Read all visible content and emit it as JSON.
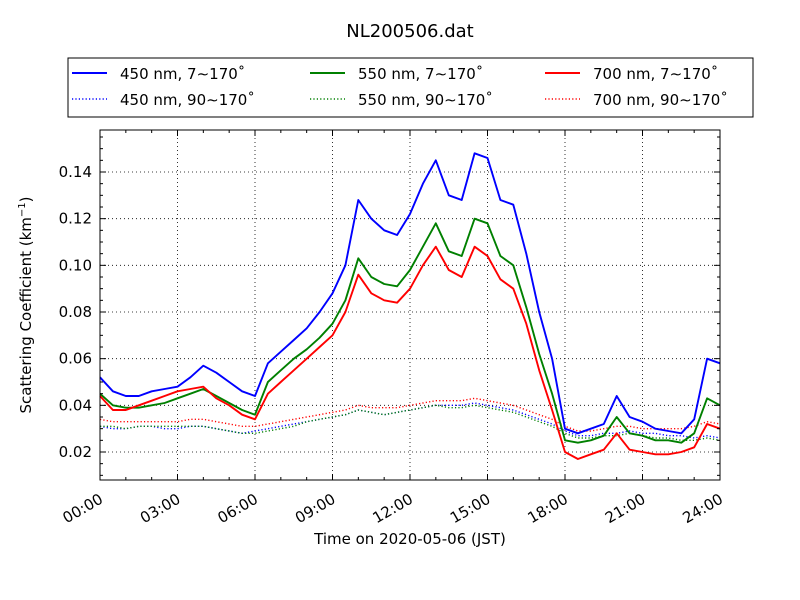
{
  "chart_data": {
    "type": "line",
    "title": "NL200506.dat",
    "xlabel": "Time on 2020-05-06 (JST)",
    "ylabel_main": "Scattering Coefficient (km",
    "ylabel_sup": "−1",
    "ylabel_end": ")",
    "xlim": [
      0,
      24
    ],
    "ylim": [
      0.008,
      0.158
    ],
    "x_ticks": [
      0,
      3,
      6,
      9,
      12,
      15,
      18,
      21,
      24
    ],
    "x_tick_labels": [
      "00:00",
      "03:00",
      "06:00",
      "09:00",
      "12:00",
      "15:00",
      "18:00",
      "21:00",
      "24:00"
    ],
    "y_ticks": [
      0.02,
      0.04,
      0.06,
      0.08,
      0.1,
      0.12,
      0.14
    ],
    "y_tick_labels": [
      "0.02",
      "0.04",
      "0.06",
      "0.08",
      "0.10",
      "0.12",
      "0.14"
    ],
    "grid": true,
    "legend_position": "top-center",
    "x": [
      0,
      0.5,
      1,
      1.5,
      2,
      2.5,
      3,
      3.5,
      4,
      4.5,
      5,
      5.5,
      6,
      6.5,
      7,
      7.5,
      8,
      8.5,
      9,
      9.5,
      10,
      10.5,
      11,
      11.5,
      12,
      12.5,
      13,
      13.5,
      14,
      14.5,
      15,
      15.5,
      16,
      16.5,
      17,
      17.5,
      18,
      18.5,
      19,
      19.5,
      20,
      20.5,
      21,
      21.5,
      22,
      22.5,
      23,
      23.5,
      24
    ],
    "series": [
      {
        "name": "450 nm, 7∼170˚",
        "color": "#0000ff",
        "style": "solid",
        "values": [
          0.052,
          0.046,
          0.044,
          0.044,
          0.046,
          0.047,
          0.048,
          0.052,
          0.057,
          0.054,
          0.05,
          0.046,
          0.044,
          0.058,
          0.063,
          0.068,
          0.073,
          0.08,
          0.088,
          0.1,
          0.128,
          0.12,
          0.115,
          0.113,
          0.122,
          0.135,
          0.145,
          0.13,
          0.128,
          0.148,
          0.146,
          0.128,
          0.126,
          0.105,
          0.08,
          0.06,
          0.03,
          0.028,
          0.03,
          0.032,
          0.044,
          0.035,
          0.033,
          0.03,
          0.029,
          0.028,
          0.034,
          0.06,
          0.058
        ]
      },
      {
        "name": "450 nm, 90∼170˚",
        "color": "#0000ff",
        "style": "dotted",
        "values": [
          0.031,
          0.03,
          0.03,
          0.031,
          0.031,
          0.03,
          0.03,
          0.031,
          0.031,
          0.03,
          0.029,
          0.028,
          0.029,
          0.03,
          0.031,
          0.032,
          0.033,
          0.034,
          0.035,
          0.036,
          0.038,
          0.037,
          0.036,
          0.037,
          0.038,
          0.039,
          0.04,
          0.04,
          0.04,
          0.041,
          0.04,
          0.039,
          0.038,
          0.036,
          0.034,
          0.032,
          0.029,
          0.027,
          0.027,
          0.028,
          0.028,
          0.029,
          0.028,
          0.028,
          0.027,
          0.027,
          0.026,
          0.027,
          0.026
        ]
      },
      {
        "name": "550 nm, 7∼170˚",
        "color": "#008000",
        "style": "solid",
        "values": [
          0.045,
          0.04,
          0.039,
          0.039,
          0.04,
          0.041,
          0.043,
          0.045,
          0.047,
          0.044,
          0.041,
          0.038,
          0.036,
          0.05,
          0.055,
          0.06,
          0.064,
          0.069,
          0.075,
          0.085,
          0.103,
          0.095,
          0.092,
          0.091,
          0.098,
          0.108,
          0.118,
          0.106,
          0.104,
          0.12,
          0.118,
          0.104,
          0.1,
          0.082,
          0.062,
          0.045,
          0.025,
          0.024,
          0.025,
          0.027,
          0.035,
          0.028,
          0.027,
          0.025,
          0.025,
          0.024,
          0.028,
          0.043,
          0.04
        ]
      },
      {
        "name": "550 nm, 90∼170˚",
        "color": "#008000",
        "style": "dotted",
        "values": [
          0.031,
          0.031,
          0.03,
          0.031,
          0.031,
          0.031,
          0.031,
          0.031,
          0.031,
          0.03,
          0.029,
          0.028,
          0.028,
          0.029,
          0.03,
          0.031,
          0.033,
          0.034,
          0.035,
          0.036,
          0.038,
          0.037,
          0.036,
          0.037,
          0.038,
          0.039,
          0.04,
          0.039,
          0.039,
          0.04,
          0.039,
          0.038,
          0.037,
          0.035,
          0.033,
          0.031,
          0.028,
          0.026,
          0.026,
          0.027,
          0.027,
          0.028,
          0.027,
          0.026,
          0.026,
          0.025,
          0.025,
          0.026,
          0.025
        ]
      },
      {
        "name": "700 nm, 7∼170˚",
        "color": "#ff0000",
        "style": "solid",
        "values": [
          0.044,
          0.038,
          0.038,
          0.04,
          0.042,
          0.044,
          0.046,
          0.047,
          0.048,
          0.043,
          0.04,
          0.036,
          0.034,
          0.045,
          0.05,
          0.055,
          0.06,
          0.065,
          0.07,
          0.08,
          0.096,
          0.088,
          0.085,
          0.084,
          0.09,
          0.1,
          0.108,
          0.098,
          0.095,
          0.108,
          0.104,
          0.094,
          0.09,
          0.075,
          0.055,
          0.038,
          0.02,
          0.017,
          0.019,
          0.021,
          0.028,
          0.021,
          0.02,
          0.019,
          0.019,
          0.02,
          0.022,
          0.032,
          0.03
        ]
      },
      {
        "name": "700 nm, 90∼170˚",
        "color": "#ff0000",
        "style": "dotted",
        "values": [
          0.034,
          0.033,
          0.033,
          0.033,
          0.033,
          0.033,
          0.033,
          0.034,
          0.034,
          0.033,
          0.032,
          0.031,
          0.031,
          0.032,
          0.033,
          0.034,
          0.035,
          0.036,
          0.037,
          0.038,
          0.04,
          0.039,
          0.039,
          0.039,
          0.04,
          0.041,
          0.042,
          0.042,
          0.042,
          0.043,
          0.042,
          0.041,
          0.04,
          0.038,
          0.036,
          0.034,
          0.031,
          0.029,
          0.029,
          0.03,
          0.031,
          0.031,
          0.03,
          0.03,
          0.03,
          0.03,
          0.031,
          0.033,
          0.032
        ]
      }
    ]
  }
}
